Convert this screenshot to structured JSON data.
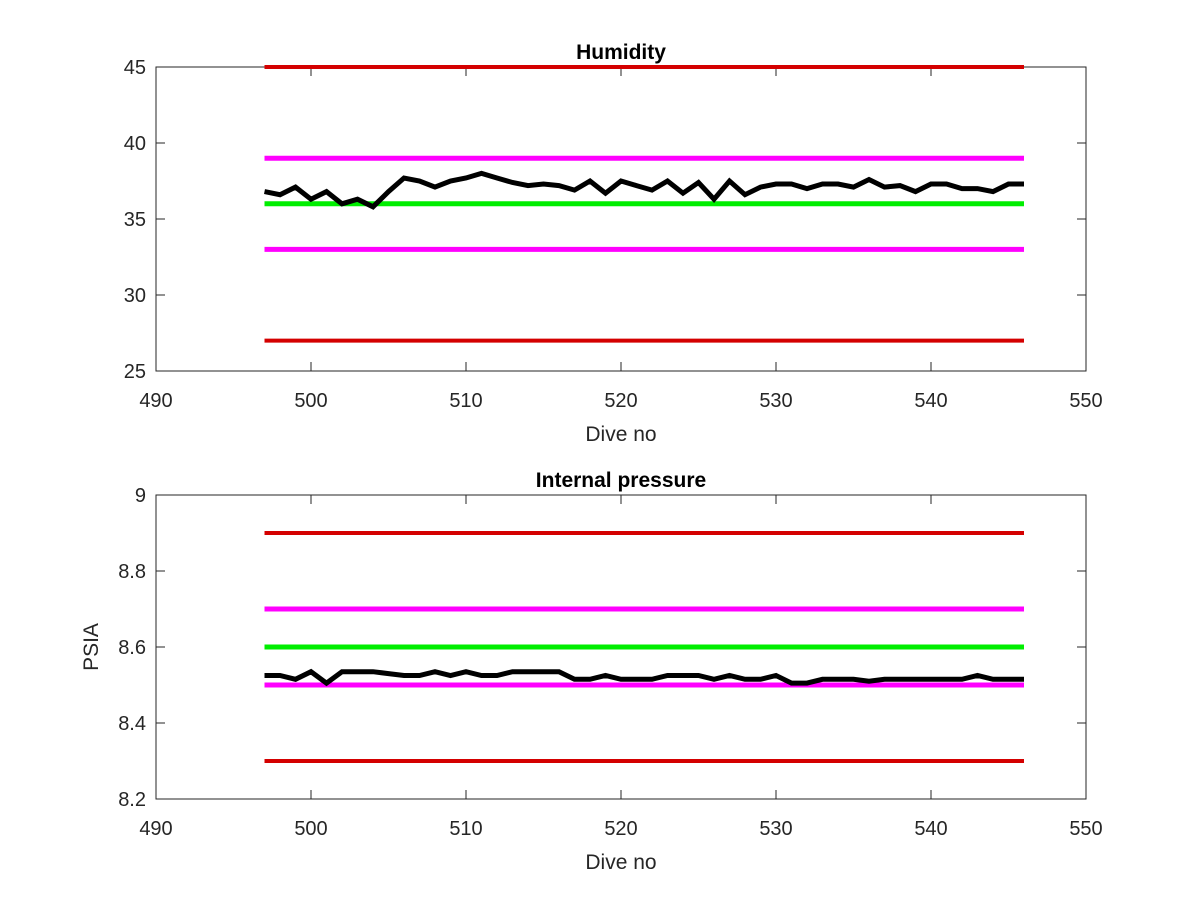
{
  "chart_data": [
    {
      "type": "line",
      "title": "Humidity",
      "xlabel": "Dive no",
      "ylabel": "",
      "xlim": [
        490,
        550
      ],
      "ylim": [
        25,
        45
      ],
      "xticks": [
        490,
        500,
        510,
        520,
        530,
        540,
        550
      ],
      "yticks": [
        25,
        30,
        35,
        40,
        45
      ],
      "xtick_labels": [
        "490",
        "500",
        "510",
        "520",
        "530",
        "540",
        "550"
      ],
      "ytick_labels": [
        "25",
        "30",
        "35",
        "40",
        "45"
      ],
      "colors": {
        "red": "#d40000",
        "magenta": "#ff00ff",
        "green": "#00ee00",
        "data": "#000000"
      },
      "series": [
        {
          "color": "red",
          "x": [
            497,
            546
          ],
          "y": [
            45,
            45
          ]
        },
        {
          "color": "magenta",
          "x": [
            497,
            546
          ],
          "y": [
            39,
            39
          ]
        },
        {
          "color": "green",
          "x": [
            497,
            546
          ],
          "y": [
            36,
            36
          ]
        },
        {
          "color": "magenta",
          "x": [
            497,
            546
          ],
          "y": [
            33,
            33
          ]
        },
        {
          "color": "red",
          "x": [
            497,
            546
          ],
          "y": [
            27,
            27
          ]
        },
        {
          "color": "data",
          "x": [
            497,
            498,
            499,
            500,
            501,
            502,
            503,
            504,
            505,
            506,
            507,
            508,
            509,
            510,
            511,
            512,
            513,
            514,
            515,
            516,
            517,
            518,
            519,
            520,
            521,
            522,
            523,
            524,
            525,
            526,
            527,
            528,
            529,
            530,
            531,
            532,
            533,
            534,
            535,
            536,
            537,
            538,
            539,
            540,
            541,
            542,
            543,
            544,
            545,
            546
          ],
          "y": [
            36.8,
            36.6,
            37.1,
            36.3,
            36.8,
            36.0,
            36.3,
            35.8,
            36.8,
            37.7,
            37.5,
            37.1,
            37.5,
            37.7,
            38.0,
            37.7,
            37.4,
            37.2,
            37.3,
            37.2,
            36.9,
            37.5,
            36.7,
            37.5,
            37.2,
            36.9,
            37.5,
            36.7,
            37.4,
            36.3,
            37.5,
            36.6,
            37.1,
            37.3,
            37.3,
            37.0,
            37.3,
            37.3,
            37.1,
            37.6,
            37.1,
            37.2,
            36.8,
            37.3,
            37.3,
            37.0,
            37.0,
            36.8,
            37.3,
            37.3
          ]
        }
      ]
    },
    {
      "type": "line",
      "title": "Internal pressure",
      "xlabel": "Dive no",
      "ylabel": "PSIA",
      "xlim": [
        490,
        550
      ],
      "ylim": [
        8.2,
        9.0
      ],
      "xticks": [
        490,
        500,
        510,
        520,
        530,
        540,
        550
      ],
      "yticks": [
        8.2,
        8.4,
        8.6,
        8.8,
        9.0
      ],
      "xtick_labels": [
        "490",
        "500",
        "510",
        "520",
        "530",
        "540",
        "550"
      ],
      "ytick_labels": [
        "8.2",
        "8.4",
        "8.6",
        "8.8",
        "9"
      ],
      "colors": {
        "red": "#d40000",
        "magenta": "#ff00ff",
        "green": "#00ee00",
        "data": "#000000"
      },
      "series": [
        {
          "color": "red",
          "x": [
            497,
            546
          ],
          "y": [
            8.9,
            8.9
          ]
        },
        {
          "color": "magenta",
          "x": [
            497,
            546
          ],
          "y": [
            8.7,
            8.7
          ]
        },
        {
          "color": "green",
          "x": [
            497,
            546
          ],
          "y": [
            8.6,
            8.6
          ]
        },
        {
          "color": "magenta",
          "x": [
            497,
            546
          ],
          "y": [
            8.5,
            8.5
          ]
        },
        {
          "color": "red",
          "x": [
            497,
            546
          ],
          "y": [
            8.3,
            8.3
          ]
        },
        {
          "color": "data",
          "x": [
            497,
            498,
            499,
            500,
            501,
            502,
            503,
            504,
            505,
            506,
            507,
            508,
            509,
            510,
            511,
            512,
            513,
            514,
            515,
            516,
            517,
            518,
            519,
            520,
            521,
            522,
            523,
            524,
            525,
            526,
            527,
            528,
            529,
            530,
            531,
            532,
            533,
            534,
            535,
            536,
            537,
            538,
            539,
            540,
            541,
            542,
            543,
            544,
            545,
            546
          ],
          "y": [
            8.525,
            8.525,
            8.515,
            8.535,
            8.505,
            8.535,
            8.535,
            8.535,
            8.53,
            8.525,
            8.525,
            8.535,
            8.525,
            8.535,
            8.525,
            8.525,
            8.535,
            8.535,
            8.535,
            8.535,
            8.515,
            8.515,
            8.525,
            8.515,
            8.515,
            8.515,
            8.525,
            8.525,
            8.525,
            8.515,
            8.525,
            8.515,
            8.515,
            8.525,
            8.505,
            8.505,
            8.515,
            8.515,
            8.515,
            8.51,
            8.515,
            8.515,
            8.515,
            8.515,
            8.515,
            8.515,
            8.525,
            8.515,
            8.515,
            8.515
          ]
        }
      ]
    }
  ]
}
